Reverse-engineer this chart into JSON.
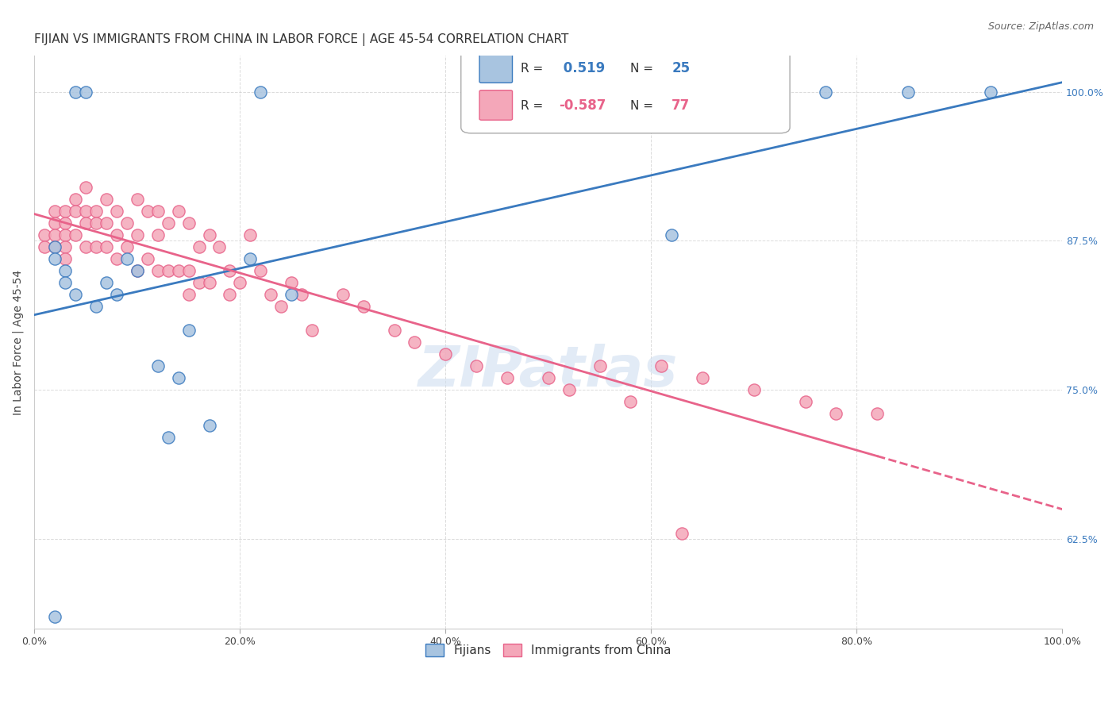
{
  "title": "FIJIAN VS IMMIGRANTS FROM CHINA IN LABOR FORCE | AGE 45-54 CORRELATION CHART",
  "source": "Source: ZipAtlas.com",
  "xlabel": "",
  "ylabel": "In Labor Force | Age 45-54",
  "xlim": [
    0.0,
    1.0
  ],
  "ylim": [
    0.55,
    1.03
  ],
  "yticks": [
    0.625,
    0.75,
    0.875,
    1.0
  ],
  "ytick_labels": [
    "62.5%",
    "75.0%",
    "87.5%",
    "100.0%"
  ],
  "xtick_labels": [
    "0.0%",
    "20.0%",
    "40.0%",
    "60.0%",
    "80.0%",
    "100.0%"
  ],
  "xticks": [
    0.0,
    0.2,
    0.4,
    0.6,
    0.8,
    1.0
  ],
  "fijian_color": "#a8c4e0",
  "china_color": "#f4a7b9",
  "fijian_line_color": "#3a7abf",
  "china_line_color": "#e8638a",
  "legend_r_fijian": "0.519",
  "legend_n_fijian": "25",
  "legend_r_china": "-0.587",
  "legend_n_china": "77",
  "fijian_x": [
    0.04,
    0.05,
    0.22,
    0.02,
    0.02,
    0.03,
    0.03,
    0.04,
    0.06,
    0.07,
    0.08,
    0.09,
    0.1,
    0.12,
    0.14,
    0.15,
    0.21,
    0.25,
    0.13,
    0.17,
    0.62,
    0.77,
    0.85,
    0.93,
    0.02
  ],
  "fijian_y": [
    1.0,
    1.0,
    1.0,
    0.87,
    0.86,
    0.85,
    0.84,
    0.83,
    0.82,
    0.84,
    0.83,
    0.86,
    0.85,
    0.77,
    0.76,
    0.8,
    0.86,
    0.83,
    0.71,
    0.72,
    0.88,
    1.0,
    1.0,
    1.0,
    0.56
  ],
  "china_x": [
    0.01,
    0.01,
    0.02,
    0.02,
    0.02,
    0.02,
    0.03,
    0.03,
    0.03,
    0.03,
    0.03,
    0.04,
    0.04,
    0.04,
    0.05,
    0.05,
    0.05,
    0.05,
    0.06,
    0.06,
    0.06,
    0.07,
    0.07,
    0.07,
    0.08,
    0.08,
    0.08,
    0.09,
    0.09,
    0.1,
    0.1,
    0.1,
    0.11,
    0.11,
    0.12,
    0.12,
    0.12,
    0.13,
    0.13,
    0.14,
    0.14,
    0.15,
    0.15,
    0.15,
    0.16,
    0.16,
    0.17,
    0.17,
    0.18,
    0.19,
    0.19,
    0.2,
    0.21,
    0.22,
    0.23,
    0.24,
    0.25,
    0.26,
    0.27,
    0.3,
    0.32,
    0.35,
    0.37,
    0.4,
    0.43,
    0.46,
    0.5,
    0.52,
    0.55,
    0.58,
    0.61,
    0.65,
    0.7,
    0.75,
    0.78,
    0.82,
    0.63
  ],
  "china_y": [
    0.88,
    0.87,
    0.9,
    0.89,
    0.88,
    0.87,
    0.9,
    0.89,
    0.88,
    0.87,
    0.86,
    0.91,
    0.9,
    0.88,
    0.92,
    0.9,
    0.89,
    0.87,
    0.9,
    0.89,
    0.87,
    0.91,
    0.89,
    0.87,
    0.9,
    0.88,
    0.86,
    0.89,
    0.87,
    0.91,
    0.88,
    0.85,
    0.9,
    0.86,
    0.9,
    0.88,
    0.85,
    0.89,
    0.85,
    0.9,
    0.85,
    0.89,
    0.85,
    0.83,
    0.87,
    0.84,
    0.88,
    0.84,
    0.87,
    0.85,
    0.83,
    0.84,
    0.88,
    0.85,
    0.83,
    0.82,
    0.84,
    0.83,
    0.8,
    0.83,
    0.82,
    0.8,
    0.79,
    0.78,
    0.77,
    0.76,
    0.76,
    0.75,
    0.77,
    0.74,
    0.77,
    0.76,
    0.75,
    0.74,
    0.73,
    0.73,
    0.63
  ],
  "background_color": "#ffffff",
  "grid_color": "#cccccc",
  "watermark_text": "ZIPatlas",
  "watermark_color": "#d0dff0",
  "title_fontsize": 11,
  "axis_label_fontsize": 10,
  "tick_fontsize": 9,
  "legend_fontsize": 11
}
